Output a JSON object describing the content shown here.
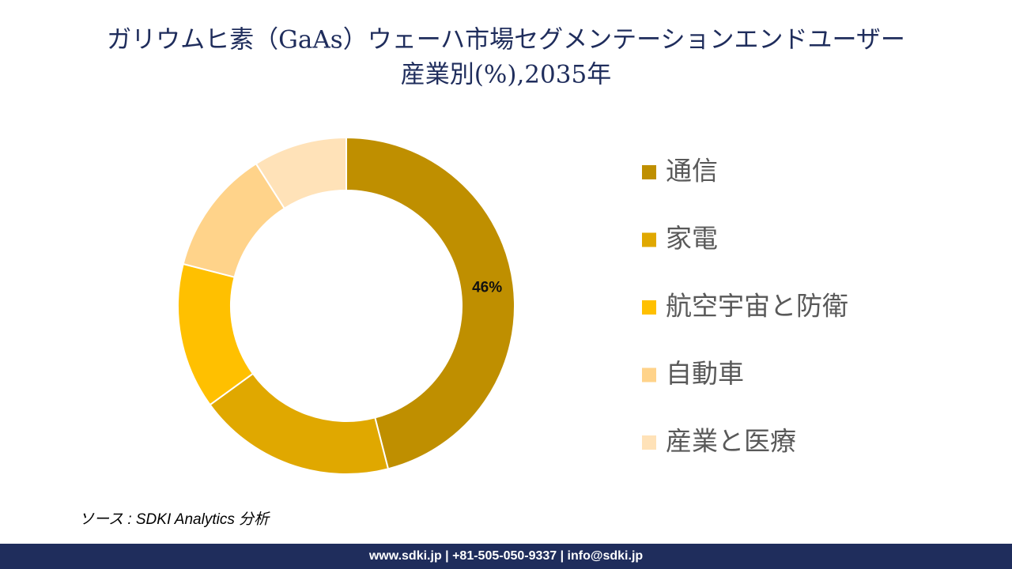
{
  "chart_data": {
    "type": "donut",
    "title": [
      "ガリウムヒ素（GaAs）ウェーハ市場セグメンテーションエンドユーザー",
      "産業別(%),2035年"
    ],
    "categories": [
      "通信",
      "家電",
      "航空宇宙と防衛",
      "自動車",
      "産業と医療"
    ],
    "values": [
      46,
      19,
      14,
      12,
      9
    ],
    "value_labels": [
      "46%",
      null,
      null,
      null,
      null
    ],
    "colors": [
      "#BF8F00",
      "#E0A800",
      "#FFC000",
      "#FFD38A",
      "#FFE2B8"
    ],
    "legend": "right",
    "source": "ソース : SDKI Analytics 分析"
  },
  "footer": "www.sdki.jp | +81-505-050-9337 | info@sdki.jp"
}
